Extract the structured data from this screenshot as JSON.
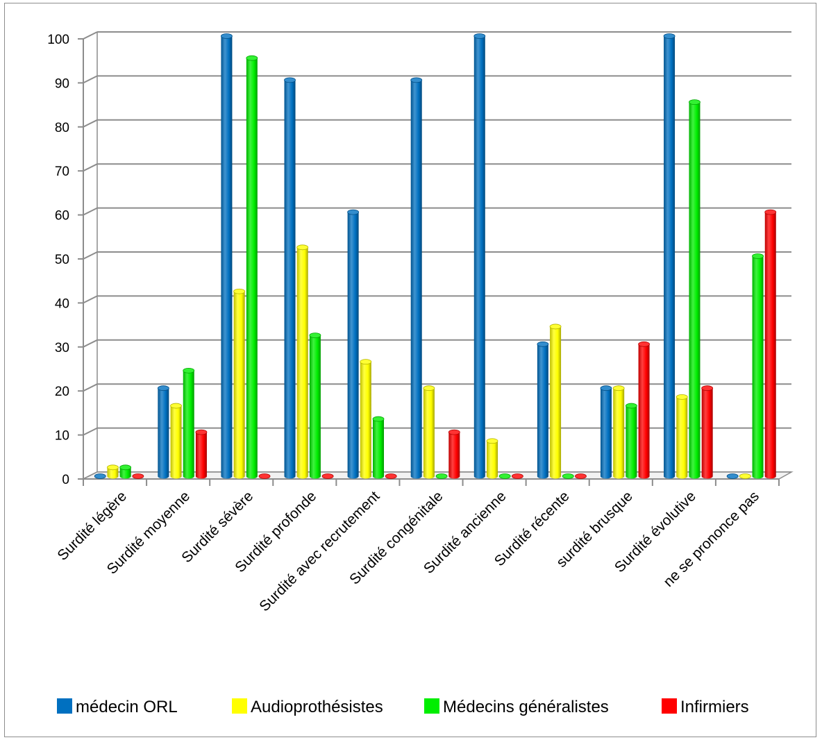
{
  "chart_data": {
    "type": "bar",
    "categories": [
      "Surdité légère",
      "Surdité moyenne",
      "Surdité sévère",
      "Surdité profonde",
      "Surdité avec recrutement",
      "Surdité congénitale",
      "Surdité ancienne",
      "Surdité récente",
      "surdité brusque",
      "Surdité évolutive",
      "ne se prononce pas"
    ],
    "series": [
      {
        "name": "médecin ORL",
        "color": "#0070c0",
        "values": [
          0,
          20,
          100,
          90,
          60,
          90,
          100,
          30,
          20,
          100,
          0
        ]
      },
      {
        "name": "Audioprothésistes",
        "color": "#ffff00",
        "values": [
          2,
          16,
          42,
          52,
          26,
          20,
          8,
          34,
          20,
          18,
          0
        ]
      },
      {
        "name": "Médecins généralistes",
        "color": "#00ee00",
        "values": [
          2,
          24,
          95,
          32,
          13,
          0,
          0,
          0,
          16,
          85,
          50
        ]
      },
      {
        "name": "Infirmiers",
        "color": "#ff0000",
        "values": [
          0,
          10,
          0,
          0,
          0,
          10,
          0,
          0,
          30,
          20,
          60
        ]
      }
    ],
    "yticks": [
      0,
      10,
      20,
      30,
      40,
      50,
      60,
      70,
      80,
      90,
      100
    ],
    "ylim": [
      0,
      100
    ],
    "grid": true,
    "legend": "bottom",
    "title": "",
    "xlabel": "",
    "ylabel": ""
  }
}
